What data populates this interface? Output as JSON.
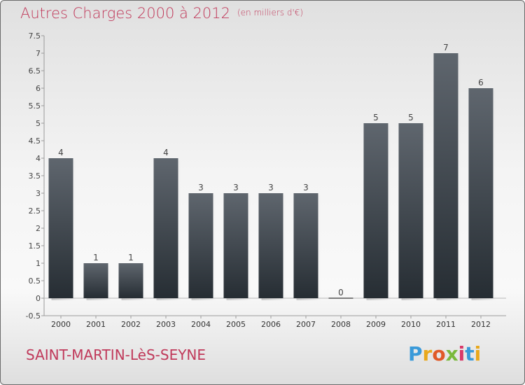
{
  "header": {
    "title": "Autres Charges 2000 à 2012",
    "unit": "(en milliers d'€)"
  },
  "footer": {
    "town": "SAINT-MARTIN-LèS-SEYNE",
    "brand": [
      "P",
      "r",
      "o",
      "x",
      "i",
      "t",
      "i"
    ]
  },
  "colors": {
    "accent": "#c0395a",
    "bar_top": "#5f666e",
    "bar_bottom": "#262d33"
  },
  "chart_data": {
    "type": "bar",
    "categories": [
      "2000",
      "2001",
      "2002",
      "2003",
      "2004",
      "2005",
      "2006",
      "2007",
      "2008",
      "2009",
      "2010",
      "2011",
      "2012"
    ],
    "values": [
      4,
      1,
      1,
      4,
      3,
      3,
      3,
      3,
      0,
      5,
      5,
      7,
      6
    ],
    "data_labels": [
      "4",
      "1",
      "1",
      "4",
      "3",
      "3",
      "3",
      "3",
      "0",
      "5",
      "5",
      "7",
      "6"
    ],
    "title": "Autres Charges 2000 à 2012",
    "subtitle": "(en milliers d'€)",
    "ylim": [
      -0.5,
      7.5
    ],
    "y_ticks": [
      "-0.5",
      "0",
      "0.5",
      "1",
      "1.5",
      "2",
      "2.5",
      "3",
      "3.5",
      "4",
      "4.5",
      "5",
      "5.5",
      "6",
      "6.5",
      "7",
      "7.5"
    ],
    "grid": false,
    "legend": "none"
  }
}
